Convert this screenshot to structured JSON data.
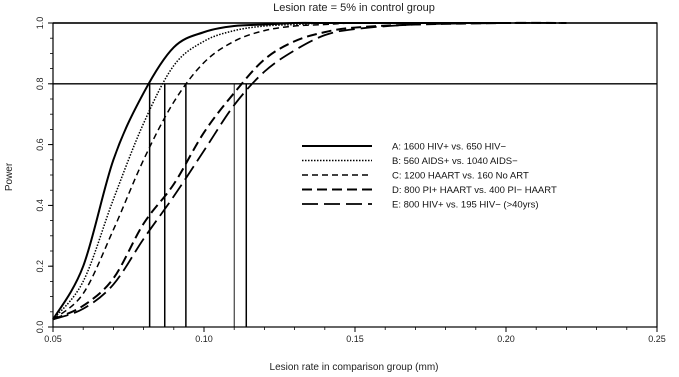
{
  "chart_data": {
    "type": "line",
    "title": "Lesion rate = 5% in control group",
    "xlabel": "Lesion rate in comparison group (mm)",
    "ylabel": "Power",
    "xlim": [
      0.05,
      0.25
    ],
    "ylim": [
      0.0,
      1.0
    ],
    "xticks": [
      0.05,
      0.1,
      0.15,
      0.2,
      0.25
    ],
    "xtick_labels": [
      "0.05",
      "0.10",
      "0.15",
      "0.20",
      "0.25"
    ],
    "yticks": [
      0.0,
      0.2,
      0.4,
      0.6,
      0.8,
      1.0
    ],
    "ytick_labels": [
      "0.0",
      "0.2",
      "0.4",
      "0.6",
      "0.8",
      "1.0"
    ],
    "grid": false,
    "reference_lines": [
      {
        "orientation": "horizontal",
        "y": 0.8
      },
      {
        "orientation": "horizontal",
        "y": 1.0
      }
    ],
    "legend_position": "center-right",
    "series": [
      {
        "name": "A: 1600 HIV+ vs. 650 HIV−",
        "style": "solid",
        "power80_x": 0.082,
        "x": [
          0.05,
          0.06,
          0.07,
          0.08,
          0.09,
          0.1,
          0.11,
          0.12,
          0.13,
          0.14,
          0.15,
          0.17,
          0.2
        ],
        "y": [
          0.025,
          0.2,
          0.55,
          0.77,
          0.92,
          0.97,
          0.99,
          0.995,
          1.0,
          1.0,
          1.0,
          1.0,
          1.0
        ]
      },
      {
        "name": "B: 560 AIDS+ vs. 1040 AIDS−",
        "style": "dotted",
        "power80_x": 0.087,
        "x": [
          0.05,
          0.06,
          0.07,
          0.08,
          0.09,
          0.1,
          0.11,
          0.12,
          0.13,
          0.14,
          0.15,
          0.17,
          0.2
        ],
        "y": [
          0.025,
          0.15,
          0.42,
          0.67,
          0.86,
          0.94,
          0.975,
          0.99,
          0.995,
          1.0,
          1.0,
          1.0,
          1.0
        ]
      },
      {
        "name": "C: 1200 HAART vs. 160 No ART",
        "style": "short-dash",
        "power80_x": 0.094,
        "x": [
          0.05,
          0.06,
          0.07,
          0.08,
          0.09,
          0.1,
          0.11,
          0.12,
          0.13,
          0.14,
          0.15,
          0.17,
          0.2
        ],
        "y": [
          0.025,
          0.11,
          0.32,
          0.55,
          0.74,
          0.87,
          0.94,
          0.975,
          0.99,
          0.995,
          1.0,
          1.0,
          1.0
        ]
      },
      {
        "name": "D: 800 PI+ HAART vs. 400 PI− HAART",
        "style": "dash",
        "power80_x": 0.11,
        "x": [
          0.05,
          0.06,
          0.07,
          0.08,
          0.09,
          0.1,
          0.11,
          0.12,
          0.13,
          0.14,
          0.15,
          0.17,
          0.2,
          0.22
        ],
        "y": [
          0.025,
          0.07,
          0.16,
          0.34,
          0.47,
          0.64,
          0.77,
          0.88,
          0.94,
          0.97,
          0.985,
          0.995,
          1.0,
          1.0
        ]
      },
      {
        "name": "E: 800 HIV+ vs. 195 HIV− (>40yrs)",
        "style": "long-dash",
        "power80_x": 0.114,
        "x": [
          0.05,
          0.06,
          0.07,
          0.08,
          0.09,
          0.1,
          0.11,
          0.12,
          0.13,
          0.14,
          0.15,
          0.17,
          0.2,
          0.22
        ],
        "y": [
          0.025,
          0.06,
          0.14,
          0.29,
          0.43,
          0.58,
          0.73,
          0.84,
          0.91,
          0.96,
          0.98,
          0.995,
          1.0,
          1.0
        ]
      }
    ]
  }
}
